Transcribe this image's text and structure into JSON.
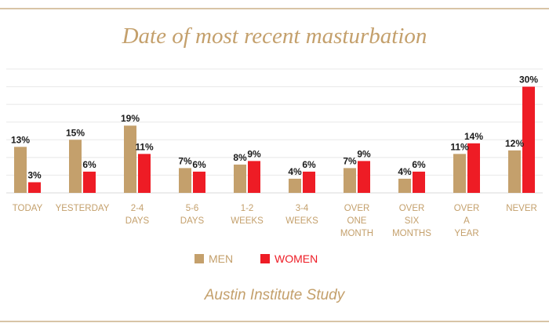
{
  "colors": {
    "men": "#c4a06c",
    "women": "#ee1c25",
    "accent": "#c4a06c",
    "rule": "#d8c4a6",
    "grid": "#e8e8e8",
    "label_text": "#1a1a1a"
  },
  "title": "Date of most recent masturbation",
  "source": "Austin Institute Study",
  "legend": {
    "men": "MEN",
    "women": "WOMEN"
  },
  "chart_data": {
    "type": "bar",
    "title": "Date of most recent masturbation",
    "categories": [
      [
        "TODAY"
      ],
      [
        "YESTERDAY"
      ],
      [
        "2-4",
        "DAYS"
      ],
      [
        "5-6",
        "DAYS"
      ],
      [
        "1-2",
        "WEEKS"
      ],
      [
        "3-4",
        "WEEKS"
      ],
      [
        "OVER",
        "ONE",
        "MONTH"
      ],
      [
        "OVER",
        "SIX",
        "MONTHS"
      ],
      [
        "OVER",
        "A",
        "YEAR"
      ],
      [
        "NEVER"
      ]
    ],
    "series": [
      {
        "name": "MEN",
        "values": [
          13,
          15,
          19,
          7,
          8,
          4,
          7,
          4,
          11,
          12
        ]
      },
      {
        "name": "WOMEN",
        "values": [
          3,
          6,
          11,
          6,
          9,
          6,
          9,
          6,
          14,
          30
        ]
      }
    ],
    "value_suffix": "%",
    "ylim": [
      0,
      35
    ],
    "grid": true,
    "legend_position": "bottom"
  }
}
